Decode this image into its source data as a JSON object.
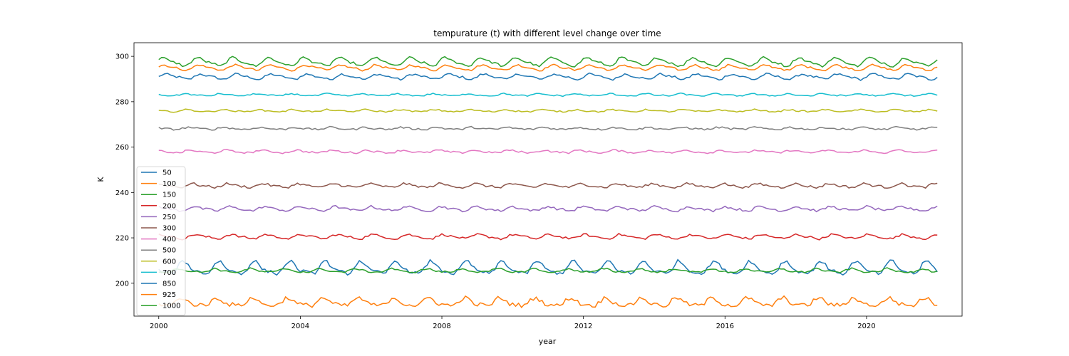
{
  "chart_data": {
    "type": "line",
    "title": "tempurature (t) with different level change over time",
    "xlabel": "year",
    "ylabel": "K",
    "xlim": [
      1999.3,
      2022.7
    ],
    "ylim": [
      185.5,
      306
    ],
    "x_ticks": [
      2000,
      2004,
      2008,
      2012,
      2016,
      2020
    ],
    "y_ticks": [
      200,
      220,
      240,
      260,
      280,
      300
    ],
    "x_start": 2000.0,
    "x_step": 0.0833333,
    "legend_position": "center-left",
    "grid": false,
    "series": [
      {
        "name": "50",
        "color": "#1f77b4",
        "base": 291.0,
        "amp": 1.0,
        "noise": 0.5,
        "phase": 0.0
      },
      {
        "name": "100",
        "color": "#ff7f0e",
        "base": 295.0,
        "amp": 1.0,
        "noise": 0.4,
        "phase": 0.3
      },
      {
        "name": "150",
        "color": "#2ca02c",
        "base": 297.5,
        "amp": 1.6,
        "noise": 0.5,
        "phase": 0.6
      },
      {
        "name": "200",
        "color": "#d62728",
        "base": 220.5,
        "amp": 0.8,
        "noise": 0.5,
        "phase": 1.0
      },
      {
        "name": "250",
        "color": "#9467bd",
        "base": 232.8,
        "amp": 0.8,
        "noise": 0.5,
        "phase": 1.3
      },
      {
        "name": "300",
        "color": "#8c564b",
        "base": 243.0,
        "amp": 0.7,
        "noise": 0.5,
        "phase": 1.6
      },
      {
        "name": "400",
        "color": "#e377c2",
        "base": 258.0,
        "amp": 0.5,
        "noise": 0.4,
        "phase": 2.0
      },
      {
        "name": "500",
        "color": "#7f7f7f",
        "base": 268.2,
        "amp": 0.4,
        "noise": 0.4,
        "phase": 2.3
      },
      {
        "name": "600",
        "color": "#bcbd22",
        "base": 276.0,
        "amp": 0.4,
        "noise": 0.3,
        "phase": 2.6
      },
      {
        "name": "700",
        "color": "#17becf",
        "base": 283.0,
        "amp": 0.4,
        "noise": 0.3,
        "phase": 2.9
      },
      {
        "name": "850",
        "color": "#1f77b4",
        "base": 206.5,
        "amp": 2.5,
        "noise": 0.7,
        "phase": 3.3
      },
      {
        "name": "925",
        "color": "#ff7f0e",
        "base": 191.5,
        "amp": 1.6,
        "noise": 0.9,
        "phase": 3.7
      },
      {
        "name": "1000",
        "color": "#2ca02c",
        "base": 205.5,
        "amp": 0.7,
        "noise": 0.4,
        "phase": 4.1
      }
    ],
    "n_points": 265
  }
}
